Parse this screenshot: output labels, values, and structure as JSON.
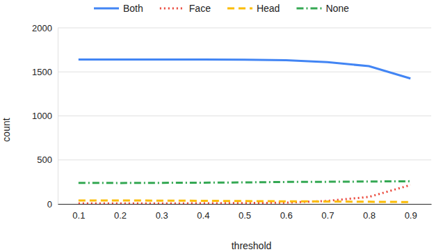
{
  "chart_data": {
    "type": "line",
    "x_label": "threshold",
    "y_label": "count",
    "categories": [
      "0.1",
      "0.2",
      "0.3",
      "0.4",
      "0.5",
      "0.6",
      "0.7",
      "0.8",
      "0.9"
    ],
    "series": [
      {
        "name": "Both",
        "color": "#4285f4",
        "line_style": "solid",
        "values": [
          1640,
          1640,
          1640,
          1640,
          1638,
          1632,
          1610,
          1565,
          1425
        ]
      },
      {
        "name": "Face",
        "color": "#ea4335",
        "line_style": "dotted",
        "values": [
          5,
          5,
          5,
          8,
          10,
          15,
          35,
          80,
          215
        ]
      },
      {
        "name": "Head",
        "color": "#fbbc04",
        "line_style": "dashed",
        "values": [
          40,
          40,
          38,
          36,
          33,
          30,
          28,
          25,
          22
        ]
      },
      {
        "name": "None",
        "color": "#34a853",
        "line_style": "dashdot",
        "values": [
          240,
          238,
          240,
          242,
          245,
          250,
          252,
          255,
          258
        ]
      }
    ],
    "ylim": [
      0,
      2000
    ],
    "yticks": [
      0,
      500,
      1000,
      1500,
      2000
    ],
    "grid": true,
    "legend": "top"
  }
}
